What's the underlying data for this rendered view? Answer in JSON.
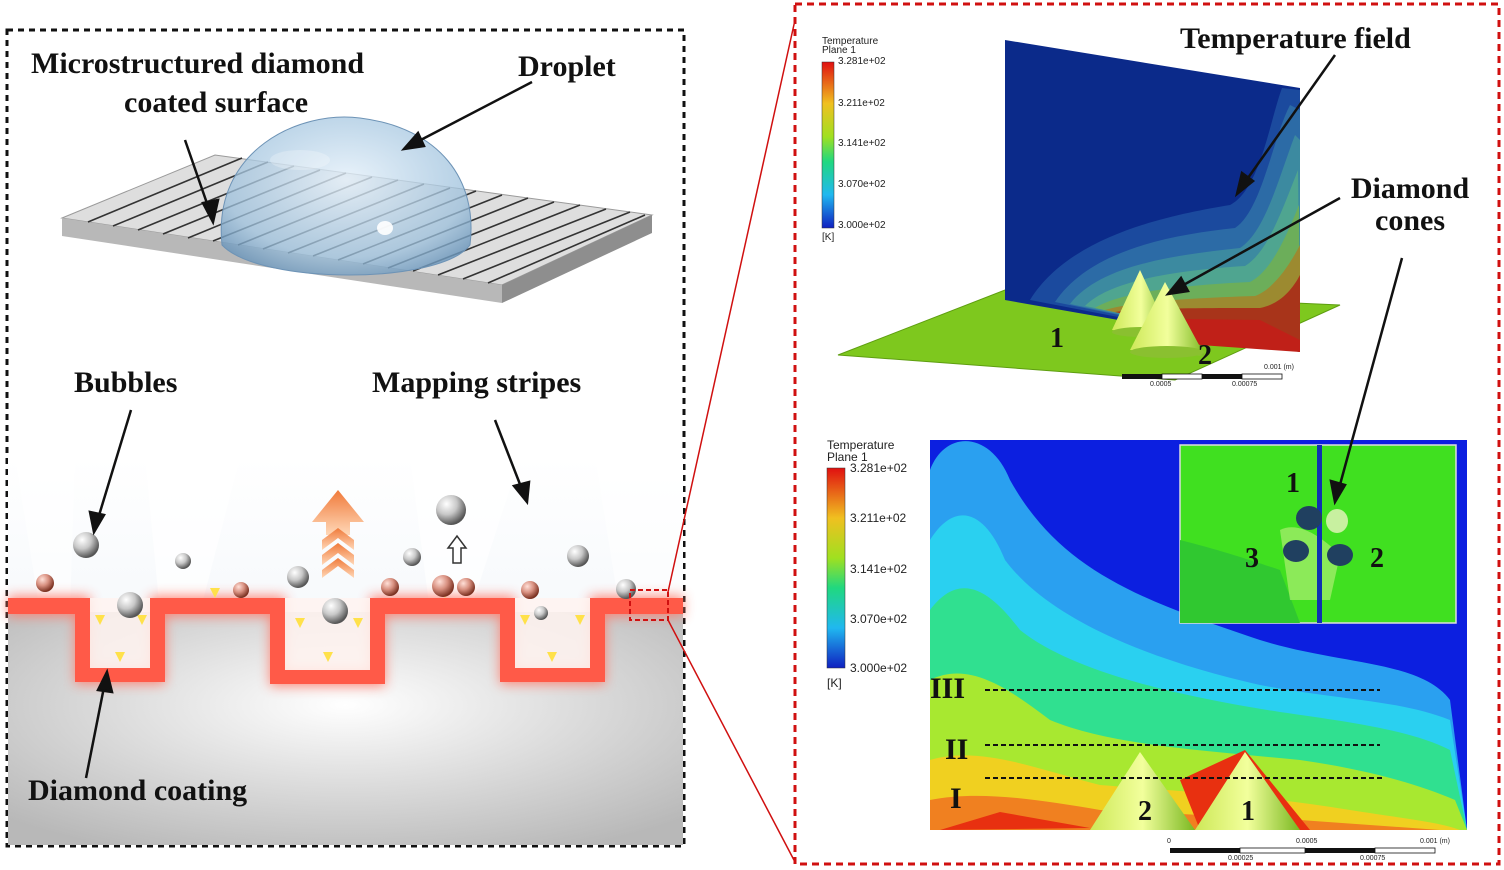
{
  "left_panel": {
    "surface_label_line1": "Microstructured diamond",
    "surface_label_line2": "coated surface",
    "droplet_label": "Droplet",
    "bubbles_label": "Bubbles",
    "mapping_label": "Mapping stripes",
    "coating_label": "Diamond coating"
  },
  "right_panel": {
    "top": {
      "legend_title_line1": "Temperature",
      "legend_title_line2": "Plane 1",
      "legend_ticks": [
        "3.281e+02",
        "3.211e+02",
        "3.141e+02",
        "3.070e+02",
        "3.000e+02"
      ],
      "legend_unit": "[K]",
      "field_label": "Temperature field",
      "cones_label_line1": "Diamond",
      "cones_label_line2": "cones",
      "cone1": "1",
      "cone2": "2",
      "scale_right": "0.001 (m)",
      "scale_mid1": "0.0005",
      "scale_mid2": "0.00075"
    },
    "bottom": {
      "legend_title_line1": "Temperature",
      "legend_title_line2": "Plane 1",
      "legend_ticks": [
        "3.281e+02",
        "3.211e+02",
        "3.141e+02",
        "3.070e+02",
        "3.000e+02"
      ],
      "legend_unit": "[K]",
      "line_III": "III",
      "line_II": "II",
      "line_I": "I",
      "cone_left": "2",
      "cone_right": "1",
      "inset_1": "1",
      "inset_2": "2",
      "inset_3": "3",
      "scale_0": "0",
      "scale_mid": "0.0005",
      "scale_end": "0.001 (m)",
      "scale_sub1": "0.00025",
      "scale_sub2": "0.00075"
    }
  },
  "colors": {
    "left_border": "#111111",
    "right_border": "#d01010",
    "coating_red": "#ff4a3a",
    "hot": "#e8321a",
    "cold": "#0a2a9a"
  }
}
